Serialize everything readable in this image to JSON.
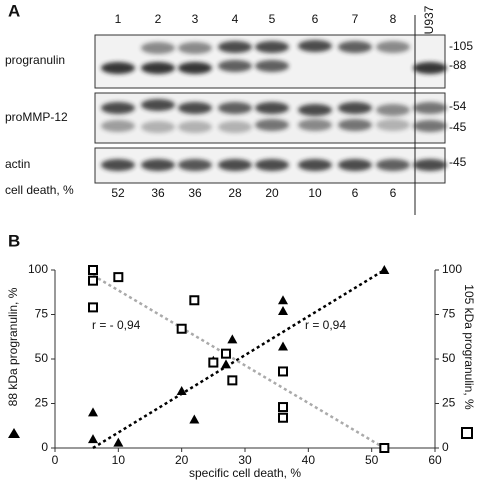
{
  "panel_a": {
    "label": "A",
    "lanes": [
      "1",
      "2",
      "3",
      "4",
      "5",
      "6",
      "7",
      "8",
      "U937"
    ],
    "rows": [
      {
        "label": "progranulin",
        "markers": [
          "-105",
          "-88"
        ]
      },
      {
        "label": "proMMP-12",
        "markers": [
          "-54",
          "-45"
        ]
      },
      {
        "label": "actin",
        "markers": [
          "-45"
        ]
      }
    ],
    "cell_death_label": "cell death, %",
    "cell_death": [
      52,
      36,
      36,
      28,
      20,
      10,
      6,
      6
    ]
  },
  "chart_data": {
    "type": "scatter",
    "panel_label": "B",
    "x_label": "specific cell death, %",
    "y_label": "88 kDa progranulin, %",
    "y2_label": "105 kDa progranulin, %",
    "annotations": [
      "r = - 0,94",
      "r = 0,94"
    ],
    "xlim": [
      0,
      60
    ],
    "xticks": [
      0,
      10,
      20,
      30,
      40,
      50,
      60
    ],
    "ylim": [
      0,
      100
    ],
    "yticks": [
      0,
      25,
      50,
      75,
      100
    ],
    "y2lim": [
      0,
      100
    ],
    "y2ticks": [
      0,
      25,
      50,
      75,
      100
    ],
    "series": [
      {
        "marker": "triangle",
        "color": "#000000",
        "x": [
          6,
          6,
          10,
          20,
          22,
          25,
          27,
          28,
          36,
          36,
          36,
          52
        ],
        "values": [
          5,
          20,
          3,
          32,
          16,
          49,
          47,
          61,
          83,
          77,
          57,
          100
        ]
      },
      {
        "marker": "square",
        "color": "#000000",
        "axis": "y2",
        "x": [
          6,
          6,
          6,
          10,
          20,
          22,
          25,
          27,
          28,
          36,
          36,
          36,
          52
        ],
        "values": [
          100,
          94,
          79,
          96,
          67,
          83,
          48,
          53,
          38,
          43,
          23,
          17,
          0
        ]
      }
    ],
    "fit_lines": [
      {
        "color": "#000000",
        "x": [
          6,
          52
        ],
        "values": [
          0,
          100
        ]
      },
      {
        "color": "#aaaaaa",
        "axis": "y2",
        "x": [
          6,
          52
        ],
        "values": [
          97,
          0
        ]
      }
    ]
  }
}
